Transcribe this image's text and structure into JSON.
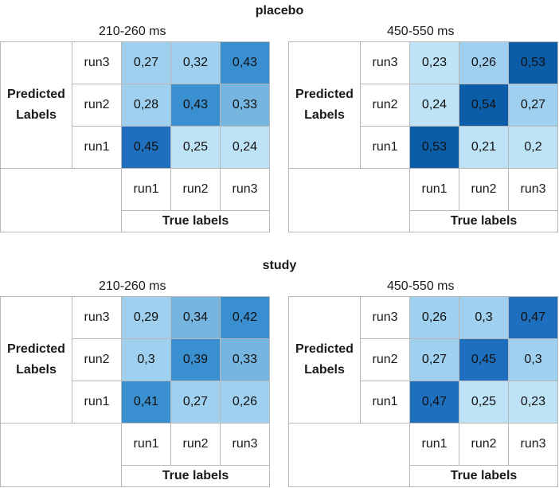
{
  "groups": [
    {
      "title": "placebo",
      "windows": [
        {
          "time": "210-260 ms",
          "predicted_label": "Predicted Labels",
          "true_label": "True labels",
          "rows": [
            "run3",
            "run2",
            "run1"
          ],
          "cols": [
            "run1",
            "run2",
            "run3"
          ],
          "cells": [
            [
              "0,27",
              "0,32",
              "0,43"
            ],
            [
              "0,28",
              "0,43",
              "0,33"
            ],
            [
              "0,45",
              "0,25",
              "0,24"
            ]
          ]
        },
        {
          "time": "450-550 ms",
          "predicted_label": "Predicted Labels",
          "true_label": "True labels",
          "rows": [
            "run3",
            "run2",
            "run1"
          ],
          "cols": [
            "run1",
            "run2",
            "run3"
          ],
          "cells": [
            [
              "0,23",
              "0,26",
              "0,53"
            ],
            [
              "0,24",
              "0,54",
              "0,27"
            ],
            [
              "0,53",
              "0,21",
              "0,2"
            ]
          ]
        }
      ]
    },
    {
      "title": "study",
      "windows": [
        {
          "time": "210-260 ms",
          "predicted_label": "Predicted Labels",
          "true_label": "True labels",
          "rows": [
            "run3",
            "run2",
            "run1"
          ],
          "cols": [
            "run1",
            "run2",
            "run3"
          ],
          "cells": [
            [
              "0,29",
              "0,34",
              "0,42"
            ],
            [
              "0,3",
              "0,39",
              "0,33"
            ],
            [
              "0,41",
              "0,27",
              "0,26"
            ]
          ]
        },
        {
          "time": "450-550 ms",
          "predicted_label": "Predicted Labels",
          "true_label": "True labels",
          "rows": [
            "run3",
            "run2",
            "run1"
          ],
          "cols": [
            "run1",
            "run2",
            "run3"
          ],
          "cells": [
            [
              "0,26",
              "0,3",
              "0,47"
            ],
            [
              "0,27",
              "0,45",
              "0,3"
            ],
            [
              "0,47",
              "0,25",
              "0,23"
            ]
          ]
        }
      ]
    }
  ],
  "colors": {
    "c0": "#bfe3f6",
    "c1": "#9fd0ef",
    "c2": "#76b5e0",
    "c3": "#3a8fd0",
    "c4": "#1f6fbf",
    "c5": "#0c5da8"
  },
  "chart_data": [
    {
      "type": "heatmap",
      "title": "placebo 210-260 ms",
      "xlabel": "True labels",
      "ylabel": "Predicted Labels",
      "x": [
        "run1",
        "run2",
        "run3"
      ],
      "y": [
        "run3",
        "run2",
        "run1"
      ],
      "values": [
        [
          0.27,
          0.32,
          0.43
        ],
        [
          0.28,
          0.43,
          0.33
        ],
        [
          0.45,
          0.25,
          0.24
        ]
      ]
    },
    {
      "type": "heatmap",
      "title": "placebo 450-550 ms",
      "xlabel": "True labels",
      "ylabel": "Predicted Labels",
      "x": [
        "run1",
        "run2",
        "run3"
      ],
      "y": [
        "run3",
        "run2",
        "run1"
      ],
      "values": [
        [
          0.23,
          0.26,
          0.53
        ],
        [
          0.24,
          0.54,
          0.27
        ],
        [
          0.53,
          0.21,
          0.2
        ]
      ]
    },
    {
      "type": "heatmap",
      "title": "study 210-260 ms",
      "xlabel": "True labels",
      "ylabel": "Predicted Labels",
      "x": [
        "run1",
        "run2",
        "run3"
      ],
      "y": [
        "run3",
        "run2",
        "run1"
      ],
      "values": [
        [
          0.29,
          0.34,
          0.42
        ],
        [
          0.3,
          0.39,
          0.33
        ],
        [
          0.41,
          0.27,
          0.26
        ]
      ]
    },
    {
      "type": "heatmap",
      "title": "study 450-550 ms",
      "xlabel": "True labels",
      "ylabel": "Predicted Labels",
      "x": [
        "run1",
        "run2",
        "run3"
      ],
      "y": [
        "run3",
        "run2",
        "run1"
      ],
      "values": [
        [
          0.26,
          0.3,
          0.47
        ],
        [
          0.27,
          0.45,
          0.3
        ],
        [
          0.47,
          0.25,
          0.23
        ]
      ]
    }
  ]
}
